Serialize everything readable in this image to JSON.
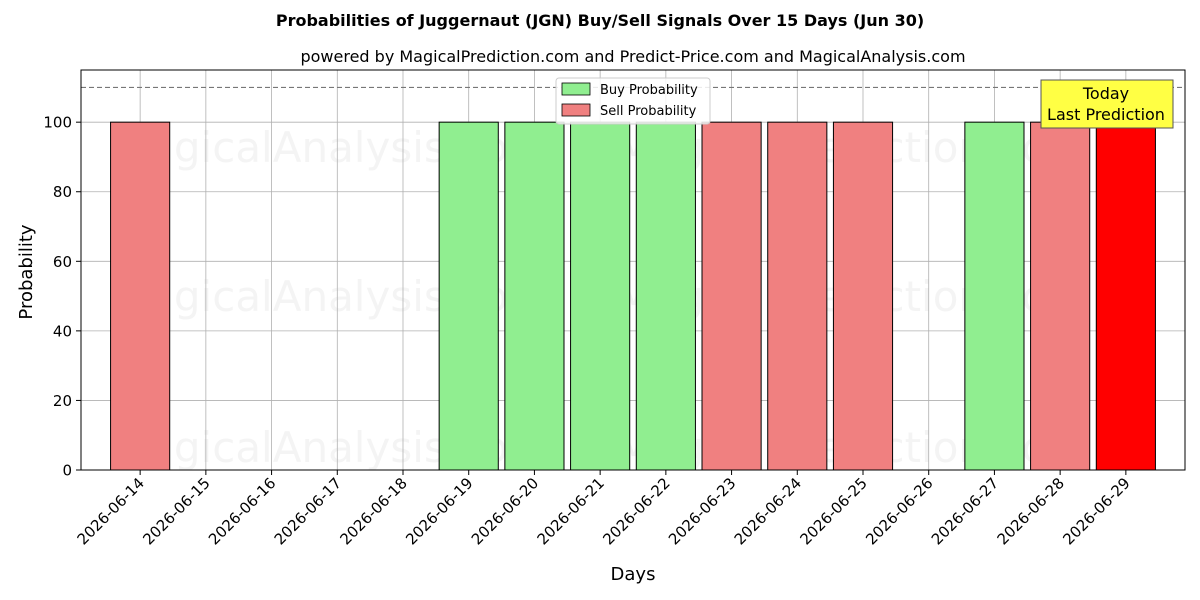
{
  "chart_data": {
    "type": "bar",
    "title": "Probabilities of Juggernaut (JGN) Buy/Sell Signals Over 15 Days (Jun 30)",
    "subtitle": "powered by MagicalPrediction.com and Predict-Price.com and MagicalAnalysis.com",
    "xlabel": "Days",
    "ylabel": "Probability",
    "ylim": [
      0,
      115
    ],
    "yticks": [
      0,
      20,
      40,
      60,
      80,
      100
    ],
    "grid": true,
    "reference_line": 110,
    "categories": [
      "2026-06-14",
      "2026-06-15",
      "2026-06-16",
      "2026-06-17",
      "2026-06-18",
      "2026-06-19",
      "2026-06-20",
      "2026-06-21",
      "2026-06-22",
      "2026-06-23",
      "2026-06-24",
      "2026-06-25",
      "2026-06-26",
      "2026-06-27",
      "2026-06-28",
      "2026-06-29"
    ],
    "series": [
      {
        "name": "Buy Probability",
        "color": "#90ee90",
        "values": [
          0,
          0,
          0,
          0,
          0,
          100,
          100,
          100,
          100,
          0,
          0,
          0,
          0,
          100,
          0,
          0
        ]
      },
      {
        "name": "Sell Probability",
        "color": "#f08080",
        "values": [
          100,
          0,
          0,
          0,
          0,
          0,
          0,
          0,
          0,
          100,
          100,
          100,
          0,
          0,
          100,
          100
        ]
      }
    ],
    "highlight": {
      "index": 15,
      "color": "#ff0000"
    },
    "legend": {
      "placement": "top-center",
      "entries": [
        "Buy Probability",
        "Sell Probability"
      ]
    },
    "annotation": {
      "lines": [
        "Today",
        "Last Prediction"
      ],
      "placement": "top-right",
      "color": "#ffff44"
    },
    "watermark": "MagicalAnalysis.com     MagicalPrediction.com"
  }
}
